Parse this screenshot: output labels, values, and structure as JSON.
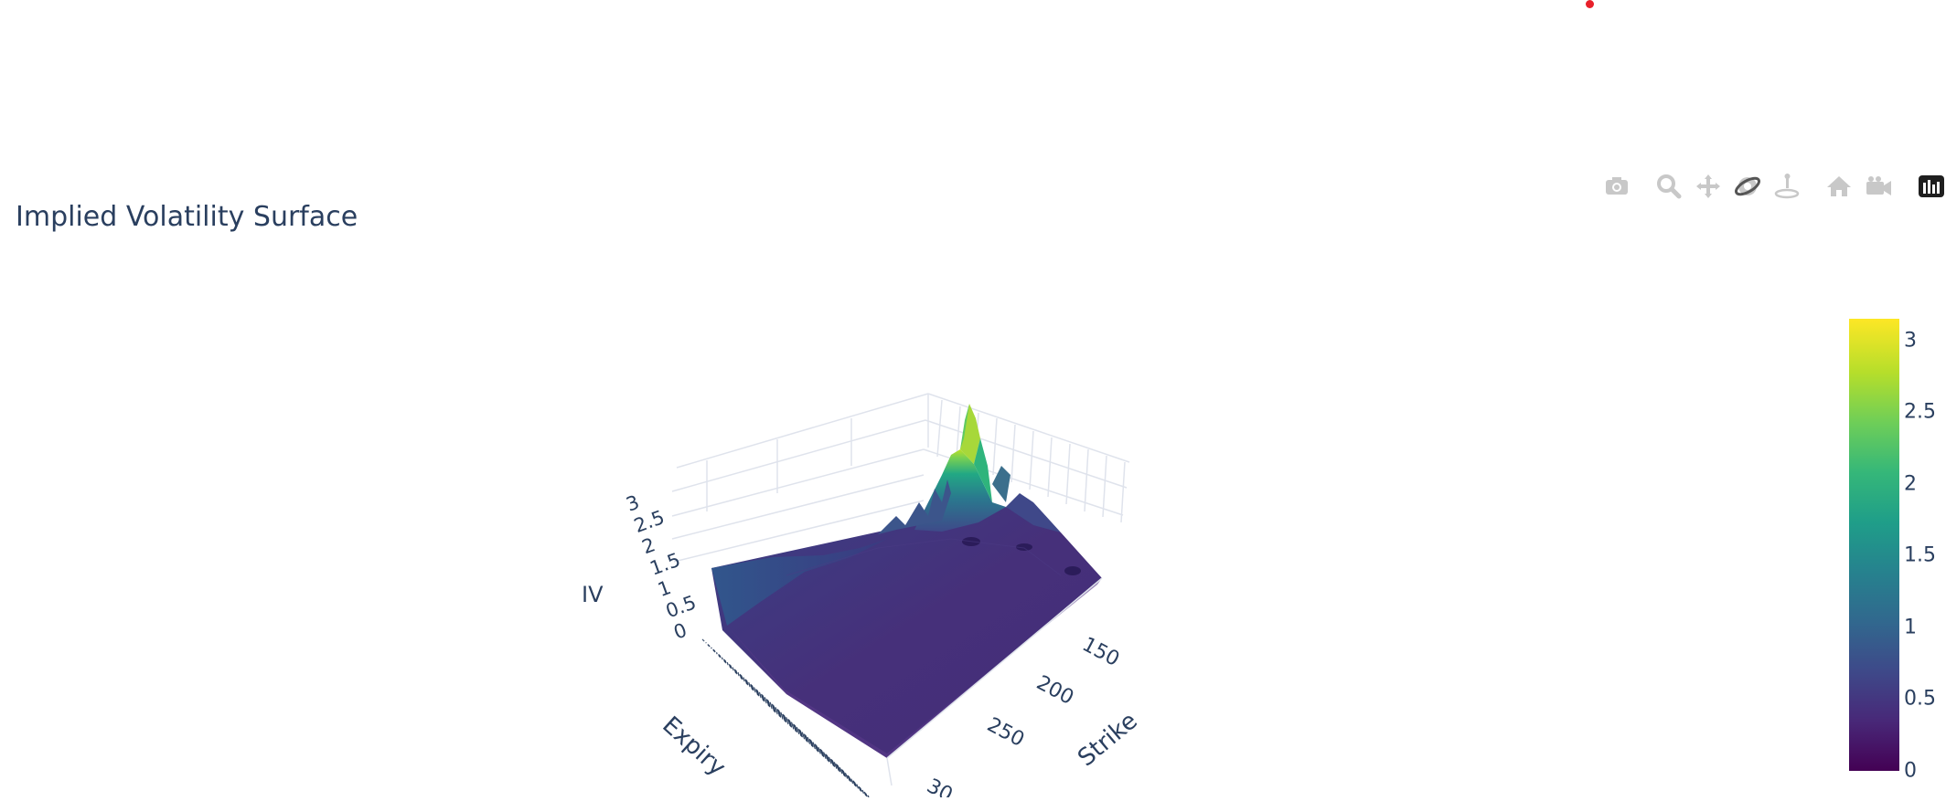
{
  "title": "Implied Volatility Surface",
  "modebar": {
    "buttons": [
      {
        "name": "camera-icon",
        "label": "Download plot as a png"
      },
      {
        "name": "zoom-icon",
        "label": "Zoom"
      },
      {
        "name": "pan-icon",
        "label": "Pan"
      },
      {
        "name": "orbit-icon",
        "label": "Orbital rotation"
      },
      {
        "name": "turntable-icon",
        "label": "Turntable rotation"
      },
      {
        "name": "home-icon",
        "label": "Reset camera to default"
      },
      {
        "name": "camera-view-icon",
        "label": "Reset camera to last save"
      },
      {
        "name": "plotly-logo-icon",
        "label": "Produced with Plotly"
      }
    ]
  },
  "chart_data": {
    "type": "surface",
    "title": "Implied Volatility Surface",
    "axes": {
      "x": {
        "label": "Strike",
        "ticks": [
          "150",
          "200",
          "250",
          "30"
        ]
      },
      "y": {
        "label": "Expiry",
        "ticks_readable": false
      },
      "z": {
        "label": "IV",
        "ticks": [
          "0",
          "0.5",
          "1",
          "1.5",
          "2",
          "2.5",
          "3"
        ]
      }
    },
    "colorscale": "Viridis",
    "colorbar": {
      "ticks": [
        "0",
        "0.5",
        "1",
        "1.5",
        "2",
        "2.5",
        "3"
      ],
      "range": [
        0,
        3.15
      ]
    },
    "zlim": [
      0,
      3.15
    ],
    "surface_summary": {
      "baseline_iv": 0.4,
      "peak_iv": 3.1,
      "peak_location": "low strike, near-term expiry"
    },
    "colors": {
      "low": "#440154",
      "mid": "#21918c",
      "high": "#fde725",
      "grid": "#dfe3ec",
      "text": "#2a3f5f",
      "modebar_icon": "#c8c8c8"
    }
  }
}
